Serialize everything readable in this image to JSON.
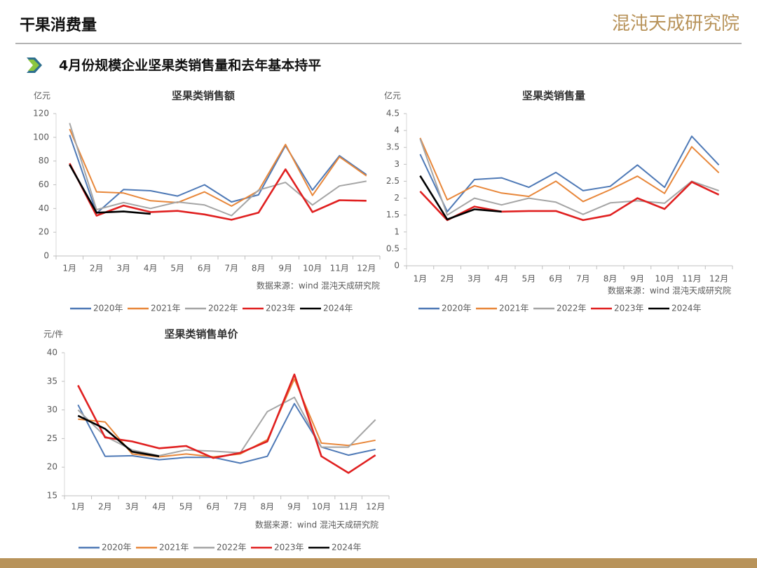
{
  "header": {
    "title": "干果消费量",
    "logo": "混沌天成研究院"
  },
  "subtitle": "4月份规模企业坚果类销售量和去年基本持平",
  "chart_data": [
    {
      "type": "line",
      "title": "坚果类销售额",
      "unit": "亿元",
      "source": "数据来源：wind 混沌天成研究院",
      "categories": [
        "1月",
        "2月",
        "3月",
        "4月",
        "5月",
        "6月",
        "7月",
        "8月",
        "9月",
        "10月",
        "11月",
        "12月"
      ],
      "ylim": [
        0,
        120
      ],
      "yticks": [
        0,
        20,
        40,
        60,
        80,
        100,
        120
      ],
      "series": [
        {
          "name": "2020年",
          "color": "#4e79b6",
          "values": [
            102,
            36,
            56,
            55,
            50.5,
            60,
            45.5,
            51.5,
            93,
            55.5,
            84.5,
            68.5
          ]
        },
        {
          "name": "2021年",
          "color": "#e8873a",
          "values": [
            107,
            54,
            53,
            46.5,
            45,
            54,
            42,
            55,
            94,
            51,
            83.5,
            67.5
          ]
        },
        {
          "name": "2022年",
          "color": "#a5a5a5",
          "values": [
            112,
            39,
            45,
            40,
            45.5,
            43,
            34,
            55.5,
            62,
            43,
            59,
            63
          ]
        },
        {
          "name": "2023年",
          "color": "#e02020",
          "values": [
            78,
            34,
            42.5,
            37,
            38,
            35,
            30.5,
            36.5,
            73,
            37,
            47,
            46.5
          ]
        },
        {
          "name": "2024年",
          "color": "#000000",
          "values": [
            77,
            36.5,
            37.5,
            35.5,
            null,
            null,
            null,
            null,
            null,
            null,
            null,
            null
          ]
        }
      ]
    },
    {
      "type": "line",
      "title": "坚果类销售量",
      "unit": "亿元",
      "source": "数据来源：wind 混沌天成研究院",
      "categories": [
        "1月",
        "2月",
        "3月",
        "4月",
        "5月",
        "6月",
        "7月",
        "8月",
        "9月",
        "10月",
        "11月",
        "12月"
      ],
      "ylim": [
        0,
        4.5
      ],
      "yticks": [
        0,
        0.5,
        1,
        1.5,
        2,
        2.5,
        3,
        3.5,
        4,
        4.5
      ],
      "series": [
        {
          "name": "2020年",
          "color": "#4e79b6",
          "values": [
            3.3,
            1.6,
            2.55,
            2.6,
            2.32,
            2.76,
            2.22,
            2.35,
            2.98,
            2.32,
            3.83,
            2.98
          ]
        },
        {
          "name": "2021年",
          "color": "#e8873a",
          "values": [
            3.78,
            1.95,
            2.37,
            2.15,
            2.05,
            2.5,
            1.9,
            2.25,
            2.65,
            2.14,
            3.52,
            2.75
          ]
        },
        {
          "name": "2022年",
          "color": "#a5a5a5",
          "values": [
            3.75,
            1.5,
            2.0,
            1.8,
            2.0,
            1.88,
            1.52,
            1.86,
            1.92,
            1.85,
            2.5,
            2.22
          ]
        },
        {
          "name": "2023年",
          "color": "#e02020",
          "values": [
            2.2,
            1.35,
            1.75,
            1.6,
            1.62,
            1.62,
            1.35,
            1.5,
            2.0,
            1.68,
            2.48,
            2.1
          ]
        },
        {
          "name": "2024年",
          "color": "#000000",
          "values": [
            2.66,
            1.37,
            1.67,
            1.6,
            null,
            null,
            null,
            null,
            null,
            null,
            null,
            null
          ]
        }
      ]
    },
    {
      "type": "line",
      "title": "坚果类销售单价",
      "unit": "元/件",
      "source": "数据来源：wind 混沌天成研究院",
      "categories": [
        "1月",
        "2月",
        "3月",
        "4月",
        "5月",
        "6月",
        "7月",
        "8月",
        "9月",
        "10月",
        "11月",
        "12月"
      ],
      "ylim": [
        15,
        40
      ],
      "yticks": [
        15,
        20,
        25,
        30,
        35,
        40
      ],
      "series": [
        {
          "name": "2020年",
          "color": "#4e79b6",
          "values": [
            30.9,
            21.9,
            22.0,
            21.3,
            21.7,
            21.7,
            20.7,
            21.9,
            31.1,
            23.5,
            22.1,
            23.1
          ]
        },
        {
          "name": "2021年",
          "color": "#e8873a",
          "values": [
            28.4,
            27.9,
            22.3,
            21.8,
            22.3,
            21.8,
            22.3,
            24.8,
            35.4,
            24.2,
            23.8,
            24.7
          ]
        },
        {
          "name": "2022年",
          "color": "#a5a5a5",
          "values": [
            30.0,
            25.4,
            23.0,
            22.0,
            23.0,
            22.8,
            22.5,
            29.7,
            32.2,
            23.5,
            23.5,
            28.3
          ]
        },
        {
          "name": "2023年",
          "color": "#e02020",
          "values": [
            34.3,
            25.2,
            24.5,
            23.3,
            23.7,
            21.6,
            22.5,
            24.5,
            36.2,
            21.9,
            19.0,
            22.1
          ]
        },
        {
          "name": "2024年",
          "color": "#000000",
          "values": [
            29.0,
            26.7,
            22.7,
            21.9,
            null,
            null,
            null,
            null,
            null,
            null,
            null,
            null
          ]
        }
      ]
    }
  ]
}
